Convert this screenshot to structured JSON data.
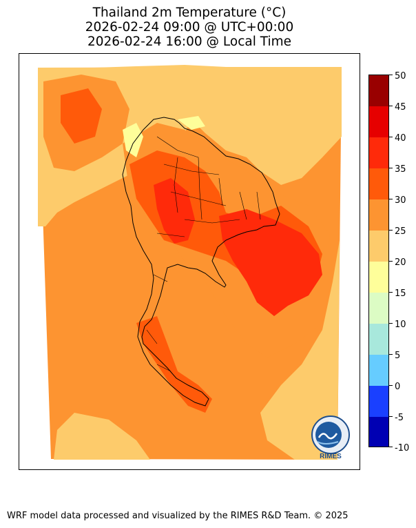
{
  "title": {
    "line1": "Thailand 2m Temperature (°C)",
    "line2": "2026-02-24 09:00 @ UTC+00:00",
    "line3": "2026-02-24 16:00 @ Local Time"
  },
  "colorbar": {
    "ticks": [
      "50",
      "45",
      "40",
      "35",
      "30",
      "25",
      "20",
      "15",
      "10",
      "5",
      "0",
      "-5",
      "-10"
    ],
    "levels": [
      {
        "range": "45-50",
        "color": "#990000"
      },
      {
        "range": "40-45",
        "color": "#e60000"
      },
      {
        "range": "35-40",
        "color": "#ff2a0a"
      },
      {
        "range": "30-35",
        "color": "#ff5a0a"
      },
      {
        "range": "25-30",
        "color": "#fd9431"
      },
      {
        "range": "20-25",
        "color": "#fdcb6b"
      },
      {
        "range": "15-20",
        "color": "#fefe9a"
      },
      {
        "range": "10-15",
        "color": "#dcfcc4"
      },
      {
        "range": "5-10",
        "color": "#a8e8dc"
      },
      {
        "range": "0-5",
        "color": "#66ccff"
      },
      {
        "range": "-5-0",
        "color": "#1a40ff"
      },
      {
        "range": "-10--5",
        "color": "#0000b3"
      }
    ]
  },
  "logo": {
    "text": "RIMES"
  },
  "footer": "WRF model data processed and visualized by the RIMES R&D Team. © 2025"
}
